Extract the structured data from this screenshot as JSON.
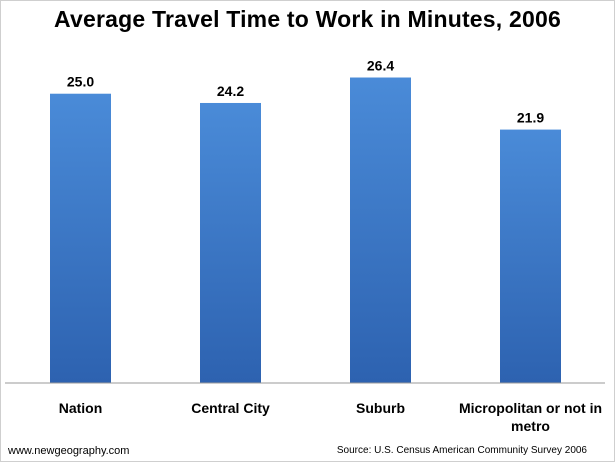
{
  "chart_data": {
    "type": "bar",
    "title": "Average Travel Time to Work in Minutes, 2006",
    "categories": [
      "Nation",
      "Central City",
      "Suburb",
      "Micropolitan or not in metro"
    ],
    "category_lines": [
      [
        "Nation"
      ],
      [
        "Central City"
      ],
      [
        "Suburb"
      ],
      [
        "Micropolitan or not in",
        "metro"
      ]
    ],
    "values": [
      25.0,
      24.2,
      26.4,
      21.9
    ],
    "value_labels": [
      "25.0",
      "24.2",
      "26.4",
      "21.9"
    ],
    "ylim": [
      0,
      28
    ],
    "grid": false,
    "legend": "none",
    "bar_color_top": "#4a8bd8",
    "bar_color_bottom": "#2d62b0"
  },
  "footer": {
    "website": "www.newgeography.com",
    "source": "Source:  U.S. Census American Community Survey 2006"
  }
}
